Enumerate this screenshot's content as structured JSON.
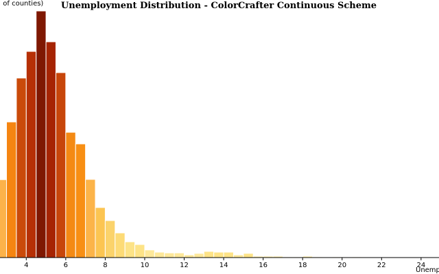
{
  "chart_data": {
    "type": "bar",
    "title": "Unemployment Distribution - ColorCrafter Continuous Scheme",
    "xlabel": "Unemplo",
    "ylabel": "(. of counties)",
    "xlim": [
      2.6,
      24.7
    ],
    "ylim": [
      0,
      1.0
    ],
    "x_ticks": [
      4,
      6,
      8,
      10,
      12,
      14,
      16,
      18,
      20,
      22,
      24
    ],
    "bin_width": 0.5,
    "bins": [
      {
        "x0": 2.5,
        "x1": 3.0,
        "value": 0.316,
        "color": "#fcb249"
      },
      {
        "x0": 3.0,
        "x1": 3.5,
        "value": 0.55,
        "color": "#f58511"
      },
      {
        "x0": 3.5,
        "x1": 4.0,
        "value": 0.728,
        "color": "#ca4a0a"
      },
      {
        "x0": 4.0,
        "x1": 4.5,
        "value": 0.836,
        "color": "#b63006"
      },
      {
        "x0": 4.5,
        "x1": 5.0,
        "value": 1.0,
        "color": "#7f1802"
      },
      {
        "x0": 5.0,
        "x1": 5.5,
        "value": 0.875,
        "color": "#a62403"
      },
      {
        "x0": 5.5,
        "x1": 6.0,
        "value": 0.75,
        "color": "#c7460b"
      },
      {
        "x0": 6.0,
        "x1": 6.5,
        "value": 0.508,
        "color": "#f48a14"
      },
      {
        "x0": 6.5,
        "x1": 7.0,
        "value": 0.461,
        "color": "#f88f14"
      },
      {
        "x0": 7.0,
        "x1": 7.5,
        "value": 0.317,
        "color": "#fcb449"
      },
      {
        "x0": 7.5,
        "x1": 8.0,
        "value": 0.203,
        "color": "#fcc552"
      },
      {
        "x0": 8.0,
        "x1": 8.5,
        "value": 0.15,
        "color": "#fbd36b"
      },
      {
        "x0": 8.5,
        "x1": 9.0,
        "value": 0.1,
        "color": "#fddb76"
      },
      {
        "x0": 9.0,
        "x1": 9.5,
        "value": 0.064,
        "color": "#fde387"
      },
      {
        "x0": 9.5,
        "x1": 10.0,
        "value": 0.053,
        "color": "#fde387"
      },
      {
        "x0": 10.0,
        "x1": 10.5,
        "value": 0.031,
        "color": "#fde89a"
      },
      {
        "x0": 10.5,
        "x1": 11.0,
        "value": 0.022,
        "color": "#fde89a"
      },
      {
        "x0": 11.0,
        "x1": 11.5,
        "value": 0.019,
        "color": "#fde89a"
      },
      {
        "x0": 11.5,
        "x1": 12.0,
        "value": 0.019,
        "color": "#fde89a"
      },
      {
        "x0": 12.0,
        "x1": 12.5,
        "value": 0.011,
        "color": "#fde89a"
      },
      {
        "x0": 12.5,
        "x1": 13.0,
        "value": 0.017,
        "color": "#fde89a"
      },
      {
        "x0": 13.0,
        "x1": 13.5,
        "value": 0.025,
        "color": "#fde387"
      },
      {
        "x0": 13.5,
        "x1": 14.0,
        "value": 0.022,
        "color": "#fde387"
      },
      {
        "x0": 14.0,
        "x1": 14.5,
        "value": 0.022,
        "color": "#fde387"
      },
      {
        "x0": 14.5,
        "x1": 15.0,
        "value": 0.011,
        "color": "#fde89a"
      },
      {
        "x0": 15.0,
        "x1": 15.5,
        "value": 0.017,
        "color": "#fde387"
      },
      {
        "x0": 15.5,
        "x1": 16.0,
        "value": 0.006,
        "color": "#fdeeae"
      },
      {
        "x0": 16.0,
        "x1": 16.5,
        "value": 0.006,
        "color": "#fdeeae"
      },
      {
        "x0": 16.5,
        "x1": 17.0,
        "value": 0.006,
        "color": "#fdeeae"
      },
      {
        "x0": 17.0,
        "x1": 17.5,
        "value": 0.003,
        "color": "#fdeeae"
      },
      {
        "x0": 17.5,
        "x1": 18.0,
        "value": 0.003,
        "color": "#fdeeae"
      },
      {
        "x0": 18.0,
        "x1": 18.5,
        "value": 0.006,
        "color": "#fdeeae"
      },
      {
        "x0": 18.5,
        "x1": 19.0,
        "value": 0.003,
        "color": "#fdeeae"
      },
      {
        "x0": 19.5,
        "x1": 20.0,
        "value": 0.003,
        "color": "#fdeeae"
      },
      {
        "x0": 20.5,
        "x1": 21.0,
        "value": 0.003,
        "color": "#fdeeae"
      }
    ]
  }
}
